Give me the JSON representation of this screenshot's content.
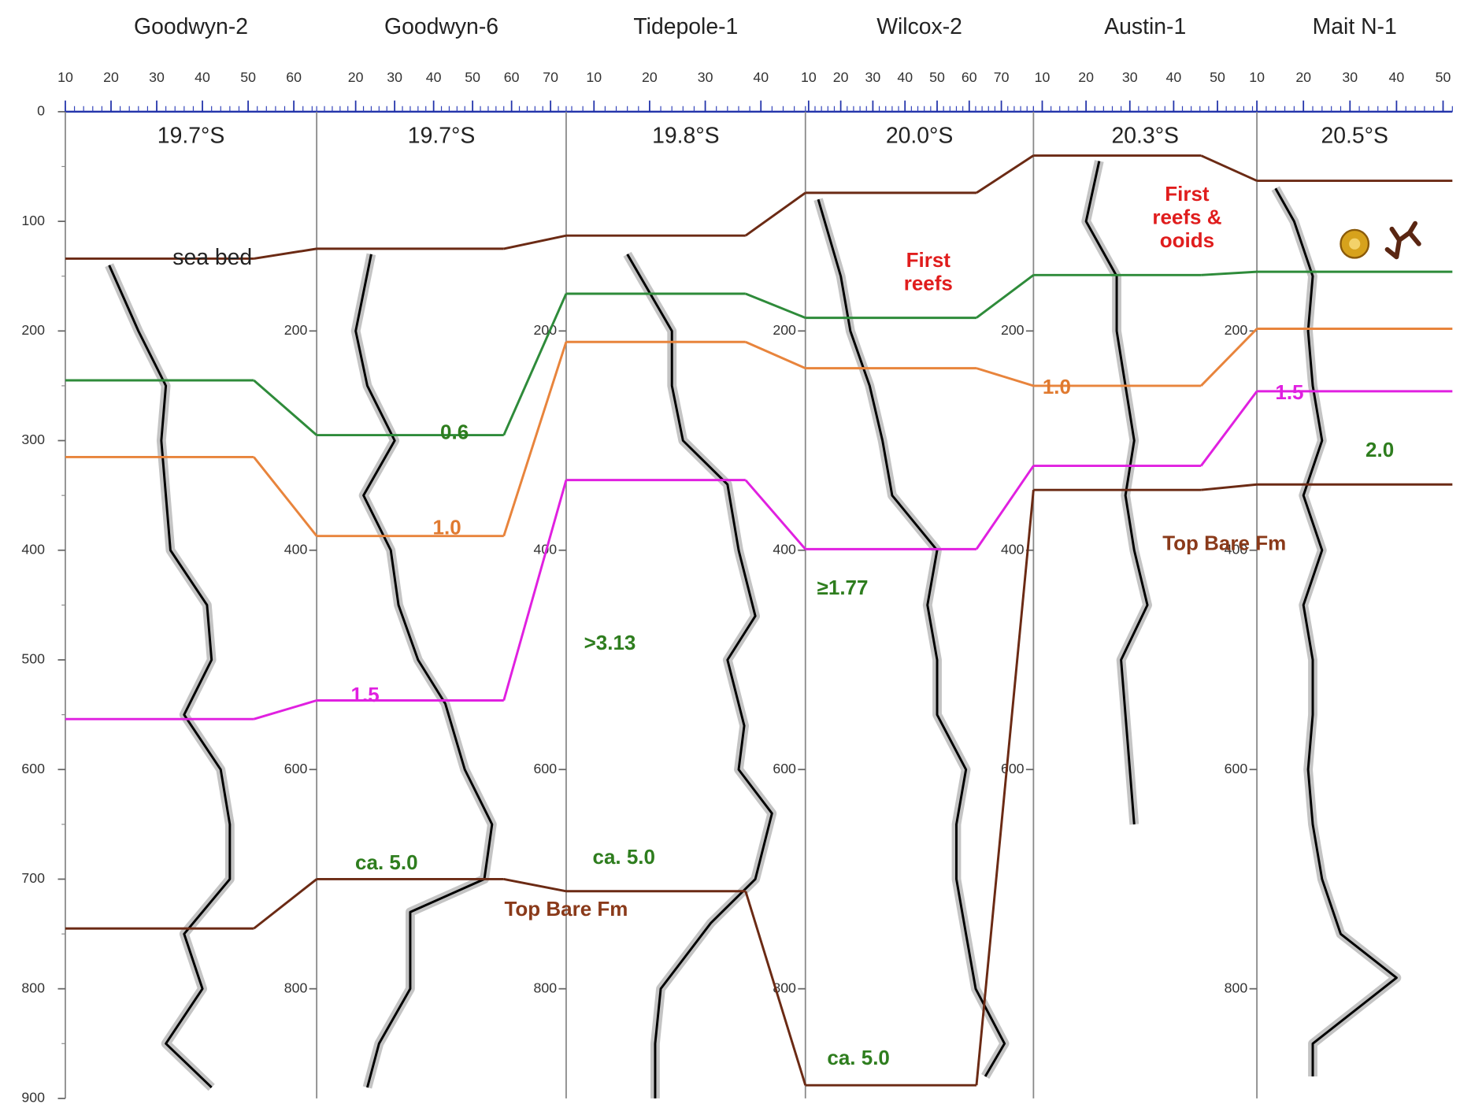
{
  "chart_data": {
    "type": "well_log_correlation",
    "ylim": [
      0,
      900
    ],
    "yticks": [
      0,
      100,
      200,
      300,
      400,
      500,
      600,
      700,
      800,
      900
    ],
    "wells": [
      {
        "name": "Goodwyn-2",
        "latitude": "19.7°S",
        "xlim": [
          10,
          65
        ],
        "xticks": [
          10,
          20,
          30,
          40,
          50,
          60
        ],
        "depth_ticks": [],
        "depth": [
          140,
          200,
          250,
          300,
          350,
          400,
          450,
          500,
          550,
          600,
          650,
          700,
          750,
          800,
          850,
          890
        ],
        "values": [
          19.6,
          26,
          32,
          31,
          32,
          33,
          41,
          42,
          36,
          44,
          46,
          46,
          36,
          40,
          32,
          42
        ]
      },
      {
        "name": "Goodwyn-6",
        "latitude": "19.7°S",
        "xlim": [
          10,
          74
        ],
        "xticks": [
          20,
          30,
          40,
          50,
          60,
          70
        ],
        "depth_ticks": [
          200,
          400,
          600,
          800
        ],
        "depth": [
          130,
          200,
          250,
          300,
          350,
          400,
          450,
          500,
          540,
          600,
          650,
          700,
          730,
          800,
          850,
          890
        ],
        "values": [
          24,
          20,
          23,
          30,
          22,
          29,
          31,
          36,
          43,
          48,
          55,
          53,
          34,
          34,
          26,
          23
        ]
      },
      {
        "name": "Tidepole-1",
        "latitude": "19.8°S",
        "xlim": [
          5,
          48
        ],
        "xticks": [
          10,
          20,
          30,
          40
        ],
        "depth_ticks": [
          200,
          400,
          600,
          800
        ],
        "depth": [
          130,
          200,
          250,
          300,
          340,
          400,
          460,
          500,
          560,
          600,
          640,
          700,
          740,
          800,
          850,
          900
        ],
        "values": [
          16,
          24,
          24,
          26,
          34,
          36,
          39,
          34,
          37,
          36,
          42,
          39,
          31,
          22,
          21,
          21
        ]
      },
      {
        "name": "Wilcox-2",
        "latitude": "20.0°S",
        "xlim": [
          9,
          80
        ],
        "xticks": [
          10,
          20,
          30,
          40,
          50,
          60,
          70
        ],
        "depth_ticks": [
          200,
          400,
          600,
          800
        ],
        "depth": [
          80,
          150,
          200,
          250,
          300,
          350,
          400,
          450,
          500,
          550,
          600,
          650,
          700,
          750,
          800,
          850,
          880
        ],
        "values": [
          13,
          20,
          23,
          29,
          33,
          36,
          50,
          47,
          50,
          50,
          59,
          56,
          56,
          59,
          62,
          71,
          65
        ]
      },
      {
        "name": "Austin-1",
        "latitude": "20.3°S",
        "xlim": [
          8,
          59
        ],
        "xticks": [
          10,
          20,
          30,
          40,
          50
        ],
        "depth_ticks": [
          200,
          400,
          600
        ],
        "depth": [
          45,
          100,
          150,
          200,
          250,
          300,
          350,
          400,
          450,
          500,
          550,
          600,
          650
        ],
        "values": [
          23,
          20,
          27,
          27,
          29,
          31,
          29,
          31,
          34,
          28,
          29,
          30,
          31
        ]
      },
      {
        "name": "Mait N-1",
        "latitude": "20.5°S",
        "xlim": [
          10,
          52
        ],
        "xticks": [
          10,
          20,
          30,
          40,
          50
        ],
        "depth_ticks": [
          200,
          400,
          600,
          800
        ],
        "depth": [
          70,
          100,
          150,
          200,
          250,
          300,
          350,
          400,
          450,
          500,
          550,
          600,
          650,
          700,
          750,
          790,
          850,
          880
        ],
        "values": [
          14,
          18,
          22,
          21,
          22,
          24,
          20,
          24,
          20,
          22,
          22,
          21,
          22,
          24,
          28,
          40,
          22,
          22
        ]
      }
    ],
    "horizons": [
      {
        "name": "sea bed",
        "color": "#6b2a14",
        "depths": [
          134,
          125,
          113,
          74,
          40,
          63
        ]
      },
      {
        "color": "#2e8b3a",
        "depths": [
          245,
          295,
          166,
          188,
          149,
          146
        ]
      },
      {
        "color": "#e8843c",
        "depths": [
          315,
          387,
          210,
          234,
          250,
          198
        ]
      },
      {
        "color": "#e020e0",
        "depths": [
          554,
          537,
          336,
          399,
          323,
          255
        ]
      },
      {
        "name": "Top Bare Fm",
        "color": "#6b2a14",
        "depths": [
          745,
          700,
          711,
          888,
          345,
          340
        ]
      }
    ],
    "annotations": [
      {
        "lines": [
          "0.6"
        ],
        "color": "#2e7d1e"
      },
      {
        "lines": [
          "1.0"
        ],
        "color": "#e07a30"
      },
      {
        "lines": [
          "1.0"
        ],
        "color": "#e07a30"
      },
      {
        "lines": [
          "1.5"
        ],
        "color": "#e020e0"
      },
      {
        "lines": [
          "1.5"
        ],
        "color": "#e020e0"
      },
      {
        "lines": [
          "2.0"
        ],
        "color": "#2e7d1e"
      },
      {
        "lines": [
          "ca. 5.0"
        ],
        "color": "#2e7d1e"
      },
      {
        "lines": [
          "ca. 5.0"
        ],
        "color": "#2e7d1e"
      },
      {
        "lines": [
          "ca. 5.0"
        ],
        "color": "#2e7d1e"
      },
      {
        "lines": [
          ">3.13"
        ],
        "color": "#2e7d1e"
      },
      {
        "lines": [
          "≥1.77"
        ],
        "color": "#2e7d1e"
      },
      {
        "lines": [
          "First",
          "reefs"
        ],
        "color": "#e01d1d"
      },
      {
        "lines": [
          "First",
          "reefs &",
          "ooids"
        ],
        "color": "#e01d1d"
      }
    ]
  }
}
